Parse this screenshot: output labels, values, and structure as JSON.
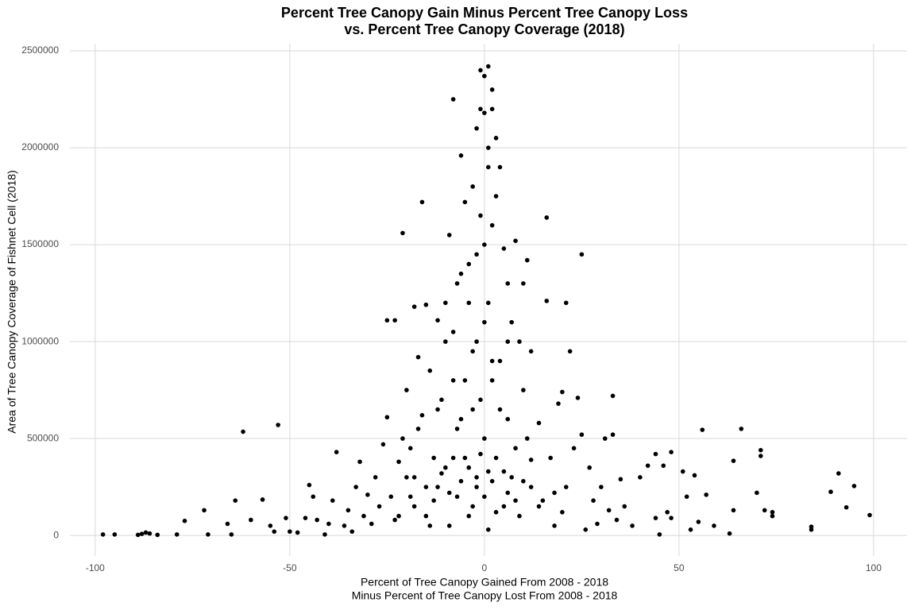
{
  "chart_data": {
    "type": "scatter",
    "title": [
      "Percent Tree Canopy Gain Minus Percent Tree Canopy Loss",
      "vs. Percent Tree Canopy Coverage (2018)"
    ],
    "x_label": [
      "Percent of Tree Canopy Gained From 2008 - 2018",
      "Minus Percent of Tree Canopy Lost From 2008 - 2018"
    ],
    "y_label": "Area of Tree Canopy Coverage of Fishnet Cell (2018)",
    "color": "#000000",
    "grid": true,
    "xlim": [
      -106.5,
      108.6
    ],
    "ylim": [
      -106000,
      2537000
    ],
    "xticks": [
      -100,
      -50,
      0,
      50,
      100
    ],
    "yticks": [
      0,
      500000,
      1000000,
      1500000,
      2000000,
      2500000
    ],
    "x": [
      -98,
      -95,
      -89,
      -88,
      -87,
      -86,
      -84,
      -79,
      -77,
      -72,
      -71,
      -66,
      -65,
      -64,
      -62,
      -60,
      -57,
      -55,
      -54,
      -53,
      -51,
      -50,
      -48,
      -46,
      -45,
      -44,
      -43,
      -41,
      -40,
      -39,
      -38,
      -36,
      -35,
      -34,
      -33,
      -32,
      -31,
      -30,
      -29,
      -28,
      -27,
      -26,
      -25,
      -25,
      -23,
      -23,
      -22,
      -21,
      -21,
      -20,
      -19,
      -18,
      -18,
      -17,
      -16,
      -16,
      -15,
      -15,
      -14,
      -13,
      -12,
      -12,
      -11,
      -10,
      -10,
      -9,
      -9,
      -8,
      -8,
      -7,
      -7,
      -6,
      -6,
      -5,
      -5,
      -4,
      -4,
      -3,
      -3,
      -2,
      -2,
      -1,
      -1,
      -1,
      0,
      0,
      0,
      0,
      0,
      1,
      1,
      1,
      1,
      2,
      2,
      2,
      3,
      3,
      3,
      4,
      4,
      5,
      5,
      6,
      6,
      7,
      7,
      8,
      8,
      9,
      9,
      10,
      10,
      11,
      11,
      12,
      12,
      14,
      15,
      16,
      16,
      17,
      18,
      19,
      20,
      21,
      21,
      22,
      23,
      24,
      25,
      25,
      26,
      27,
      28,
      29,
      30,
      31,
      32,
      33,
      33,
      34,
      35,
      36,
      38,
      40,
      42,
      44,
      44,
      45,
      46,
      47,
      48,
      48,
      51,
      52,
      53,
      54,
      55,
      56,
      57,
      59,
      63,
      64,
      64,
      66,
      70,
      71,
      71,
      72,
      74,
      74,
      84,
      84,
      89,
      91,
      93,
      95,
      99,
      -20,
      -18,
      -15,
      -14,
      -13,
      -11,
      -9,
      -8,
      -6,
      -4,
      -3,
      -2,
      -1,
      1,
      2,
      3,
      5,
      6,
      8,
      10,
      12,
      14,
      18,
      20,
      -24,
      -22,
      -19,
      -17,
      -12,
      -7,
      -5,
      -3,
      -2,
      0,
      2,
      4,
      6,
      -8,
      -10,
      -6,
      -4,
      -2,
      1,
      -1,
      2
    ],
    "y": [
      5000,
      5000,
      3000,
      8000,
      15000,
      10000,
      3000,
      5000,
      75000,
      130000,
      5000,
      60000,
      5000,
      180000,
      535000,
      80000,
      185000,
      50000,
      20000,
      570000,
      90000,
      20000,
      15000,
      90000,
      260000,
      200000,
      80000,
      5000,
      60000,
      180000,
      430000,
      50000,
      130000,
      20000,
      250000,
      380000,
      100000,
      210000,
      60000,
      300000,
      150000,
      470000,
      610000,
      1110000,
      1110000,
      80000,
      380000,
      1560000,
      500000,
      750000,
      200000,
      1180000,
      300000,
      920000,
      1720000,
      620000,
      1190000,
      100000,
      850000,
      400000,
      1110000,
      250000,
      700000,
      1000000,
      350000,
      1550000,
      50000,
      2250000,
      800000,
      1300000,
      200000,
      1960000,
      600000,
      1720000,
      400000,
      1400000,
      100000,
      1800000,
      950000,
      2100000,
      300000,
      2400000,
      1650000,
      700000,
      2370000,
      2180000,
      1500000,
      500000,
      200000,
      2420000,
      2000000,
      1200000,
      30000,
      2200000,
      1600000,
      800000,
      2050000,
      1750000,
      400000,
      1900000,
      900000,
      1480000,
      150000,
      1300000,
      600000,
      1100000,
      300000,
      1520000,
      450000,
      1000000,
      100000,
      1300000,
      750000,
      1420000,
      500000,
      950000,
      250000,
      580000,
      180000,
      1210000,
      1640000,
      400000,
      50000,
      680000,
      740000,
      1200000,
      250000,
      950000,
      450000,
      710000,
      1450000,
      520000,
      30000,
      350000,
      180000,
      60000,
      250000,
      500000,
      130000,
      520000,
      720000,
      80000,
      290000,
      150000,
      50000,
      300000,
      360000,
      420000,
      90000,
      5000,
      360000,
      120000,
      430000,
      90000,
      330000,
      200000,
      30000,
      310000,
      70000,
      545000,
      210000,
      50000,
      10000,
      385000,
      130000,
      550000,
      220000,
      440000,
      410000,
      130000,
      100000,
      120000,
      45000,
      30000,
      225000,
      320000,
      145000,
      255000,
      105000,
      300000,
      150000,
      250000,
      50000,
      180000,
      320000,
      220000,
      400000,
      280000,
      350000,
      150000,
      250000,
      420000,
      330000,
      280000,
      120000,
      330000,
      220000,
      180000,
      280000,
      390000,
      150000,
      220000,
      120000,
      200000,
      100000,
      450000,
      550000,
      650000,
      550000,
      800000,
      650000,
      1000000,
      1100000,
      900000,
      650000,
      1000000,
      1050000,
      1200000,
      1350000,
      1200000,
      1450000,
      1900000,
      2200000,
      2300000
    ]
  }
}
